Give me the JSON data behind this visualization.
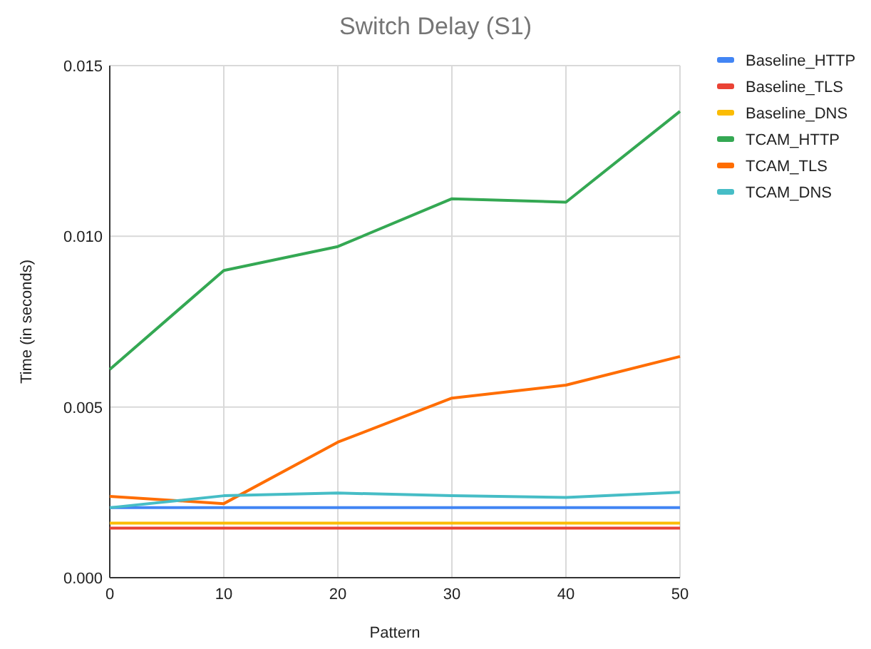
{
  "chart_data": {
    "type": "line",
    "title": "Switch Delay (S1)",
    "xlabel": "Pattern",
    "ylabel": "Time (in seconds)",
    "x": [
      0,
      10,
      20,
      30,
      40,
      50
    ],
    "xlim": [
      0,
      50
    ],
    "xticks": [
      0,
      10,
      20,
      30,
      40,
      50
    ],
    "ylim": [
      0,
      0.015
    ],
    "yticks": [
      {
        "value": 0,
        "label": "0.000"
      },
      {
        "value": 0.005,
        "label": "0.005"
      },
      {
        "value": 0.01,
        "label": "0.010"
      },
      {
        "value": 0.015,
        "label": "0.015"
      }
    ],
    "grid": true,
    "legend": "right",
    "marker": "none",
    "line_style": "solid",
    "series": [
      {
        "name": "Baseline_HTTP",
        "color": "#4285f4",
        "values": [
          0.00205,
          0.00205,
          0.00205,
          0.00205,
          0.00205,
          0.00205
        ]
      },
      {
        "name": "Baseline_TLS",
        "color": "#ea4335",
        "values": [
          0.00145,
          0.00145,
          0.00145,
          0.00145,
          0.00145,
          0.00145
        ]
      },
      {
        "name": "Baseline_DNS",
        "color": "#fbbc04",
        "values": [
          0.0016,
          0.0016,
          0.0016,
          0.0016,
          0.0016,
          0.0016
        ]
      },
      {
        "name": "TCAM_HTTP",
        "color": "#34a853",
        "values": [
          0.0061,
          0.009,
          0.0097,
          0.0111,
          0.011,
          0.01366
        ]
      },
      {
        "name": "TCAM_TLS",
        "color": "#ff6d01",
        "values": [
          0.00238,
          0.00217,
          0.00397,
          0.00526,
          0.00564,
          0.00648
        ]
      },
      {
        "name": "TCAM_DNS",
        "color": "#46bdc6",
        "values": [
          0.00205,
          0.0024,
          0.00248,
          0.0024,
          0.00235,
          0.0025
        ]
      }
    ]
  }
}
